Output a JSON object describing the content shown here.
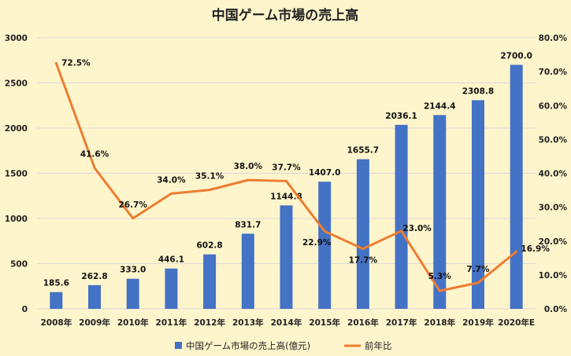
{
  "chart_data": {
    "type": "bar",
    "title": "中国ゲーム市場の売上高",
    "categories": [
      "2008年",
      "2009年",
      "2010年",
      "2011年",
      "2012年",
      "2013年",
      "2014年",
      "2015年",
      "2016年",
      "2017年",
      "2018年",
      "2019年",
      "2020年E"
    ],
    "series": [
      {
        "name": "中国ゲーム市場の売上高(億元)",
        "type": "bar",
        "axis": "left",
        "color": "#4472c4",
        "values": [
          185.6,
          262.8,
          333.0,
          446.1,
          602.8,
          831.7,
          1144.8,
          1407.0,
          1655.7,
          2036.1,
          2144.4,
          2308.8,
          2700.0
        ],
        "labels": [
          "185.6",
          "262.8",
          "333.0",
          "446.1",
          "602.8",
          "831.7",
          "1144.8",
          "1407.0",
          "1655.7",
          "2036.1",
          "2144.4",
          "2308.8",
          "2700.0"
        ]
      },
      {
        "name": "前年比",
        "type": "line",
        "axis": "right",
        "color": "#ed7d31",
        "values": [
          72.5,
          41.6,
          26.7,
          34.0,
          35.1,
          38.0,
          37.7,
          22.9,
          17.7,
          23.0,
          5.3,
          7.7,
          16.9
        ],
        "labels": [
          "72.5%",
          "41.6%",
          "26.7%",
          "34.0%",
          "35.1%",
          "38.0%",
          "37.7%",
          "22.9%",
          "17.7%",
          "23.0%",
          "5.3%",
          "7.7%",
          "16.9%"
        ]
      }
    ],
    "y_left": {
      "min": 0,
      "max": 3000,
      "ticks": [
        "0",
        "500",
        "1000",
        "1500",
        "2000",
        "2500",
        "3000"
      ]
    },
    "y_right": {
      "min": 0,
      "max": 80,
      "ticks": [
        "0.0%",
        "10.0%",
        "20.0%",
        "30.0%",
        "40.0%",
        "50.0%",
        "60.0%",
        "70.0%",
        "80.0%"
      ]
    },
    "grid": true,
    "legend": "bottom"
  }
}
